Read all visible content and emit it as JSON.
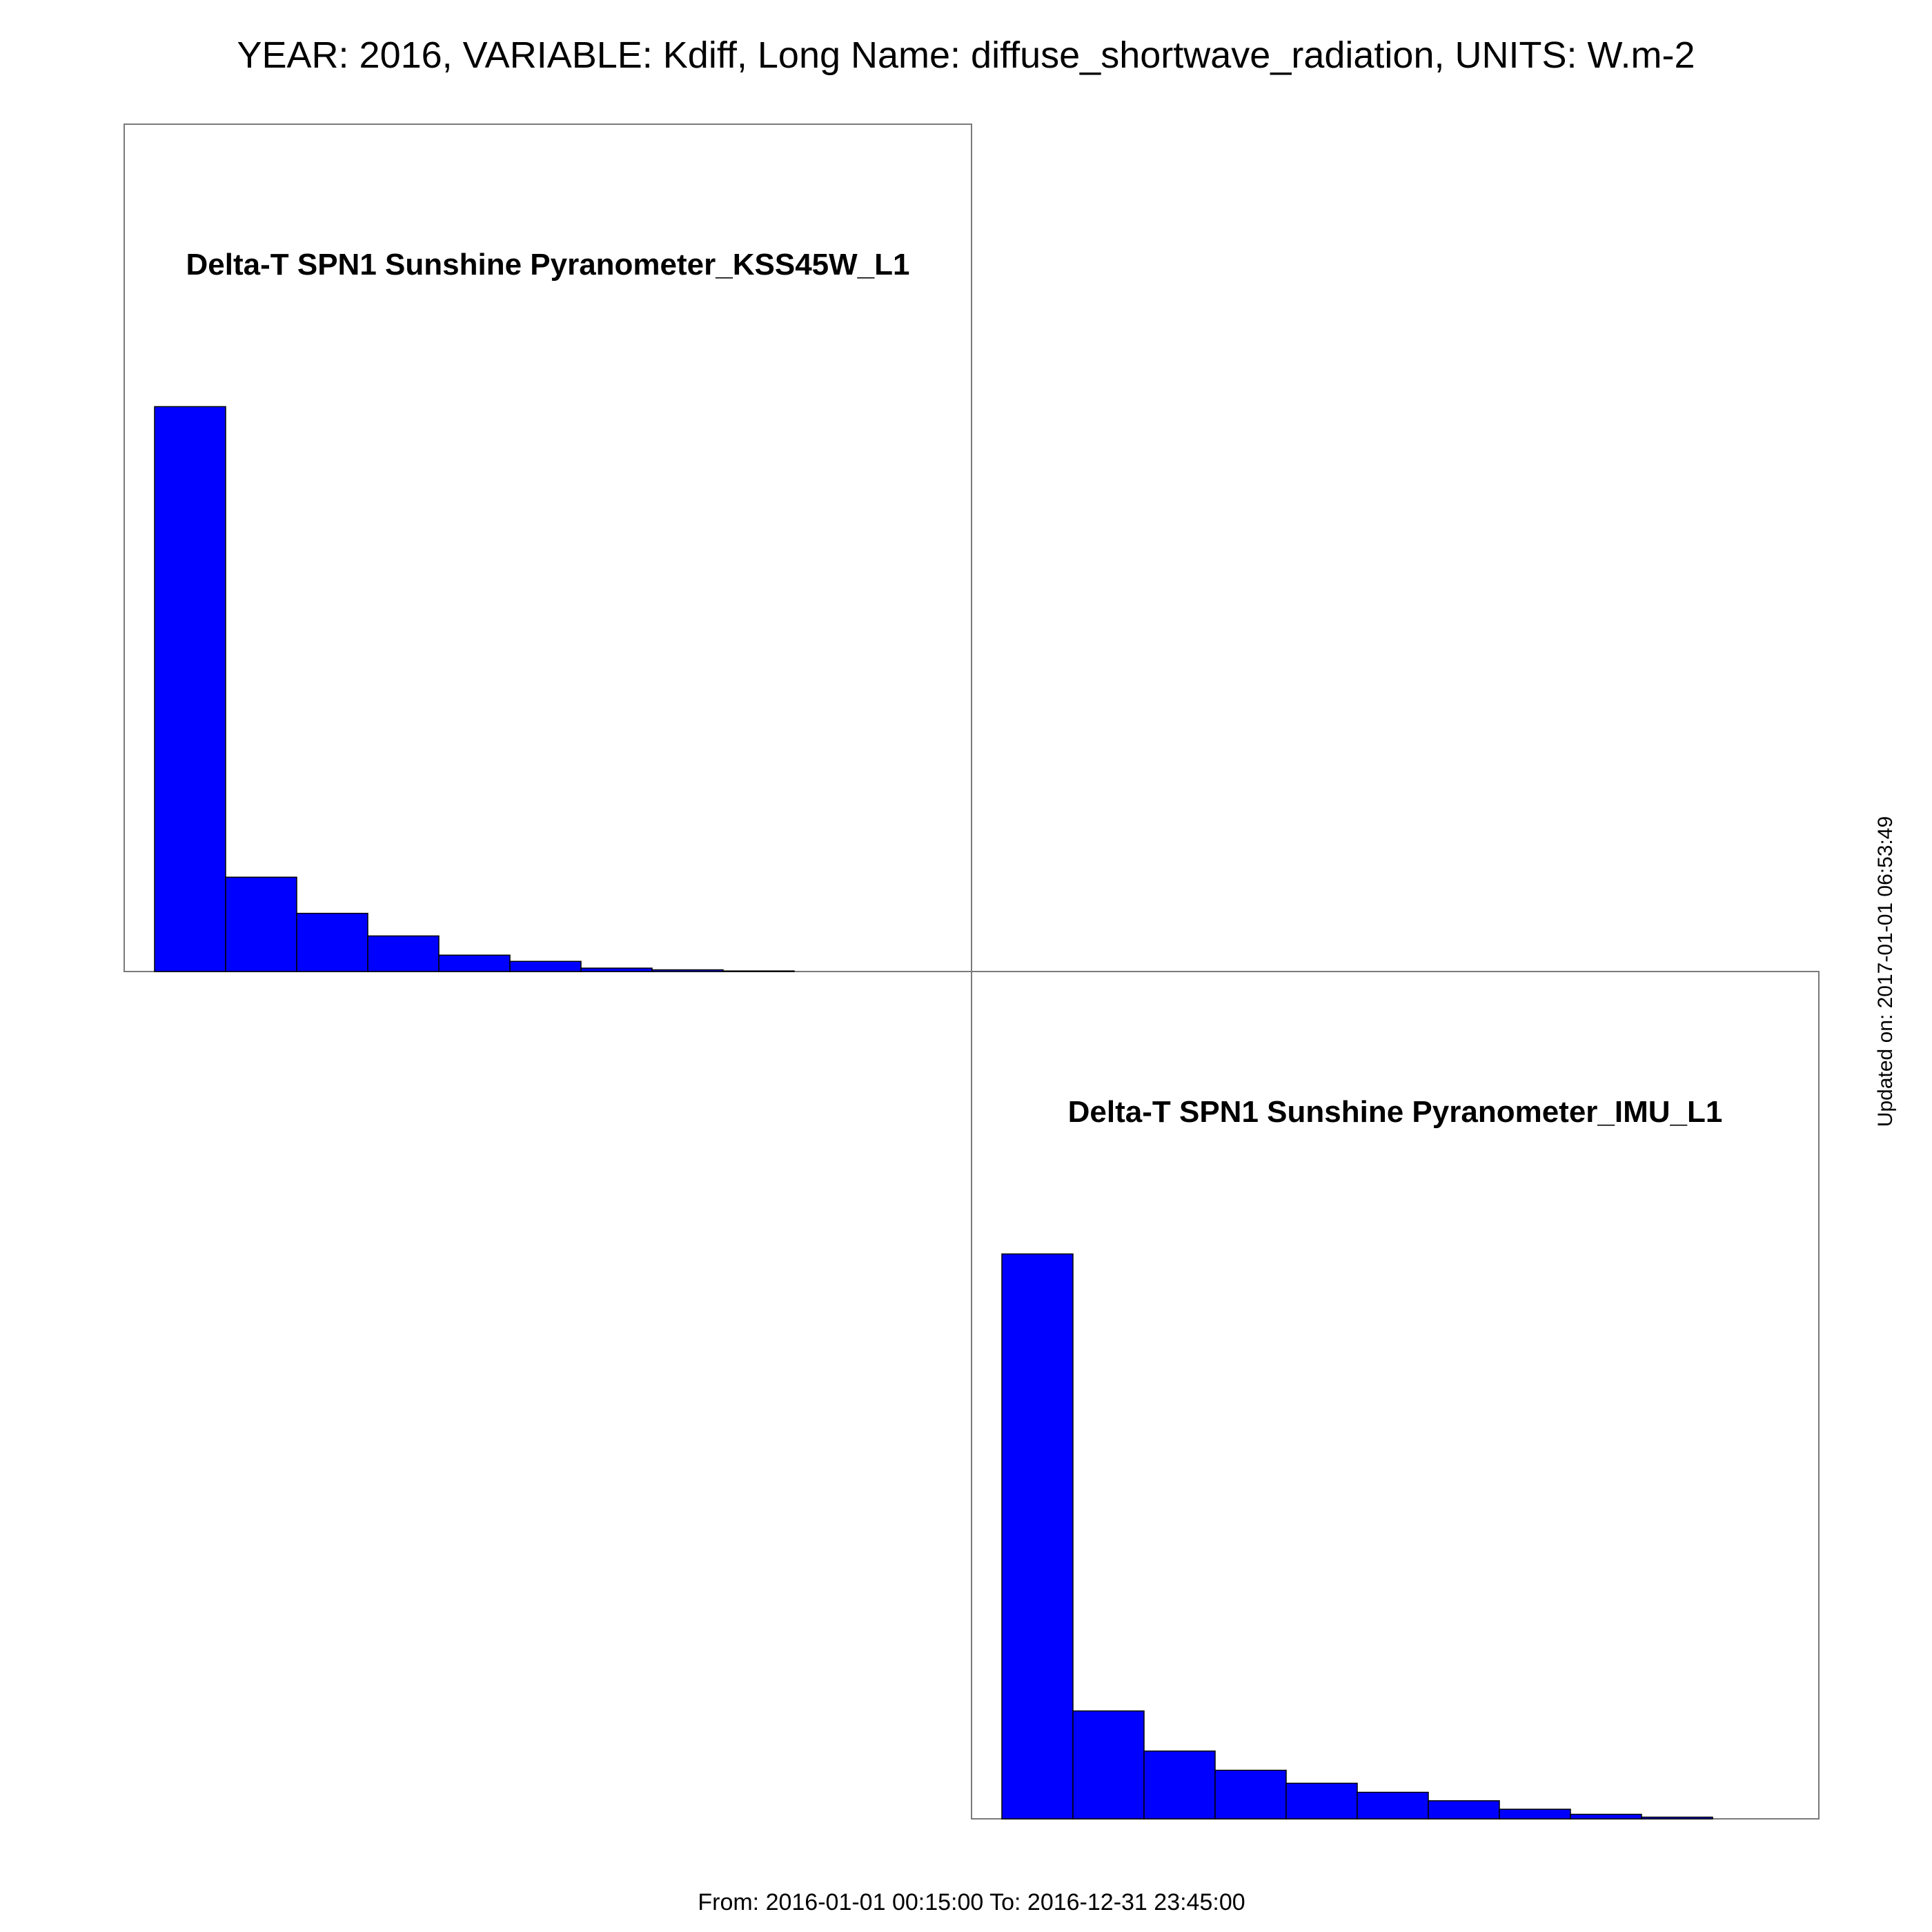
{
  "title": "YEAR: 2016, VARIABLE: Kdiff, Long Name: diffuse_shortwave_radiation, UNITS: W.m-2",
  "footer": "From: 2016-01-01 00:15:00 To: 2016-12-31 23:45:00",
  "updated": "Updated on: 2017-01-01 06:53:49",
  "colors": {
    "bar_fill": "#0000ff",
    "bar_edge": "#000000",
    "frame": "#7a7a7a"
  },
  "chart_data": [
    {
      "type": "bar",
      "title": "Delta-T SPN1 Sunshine Pyranometer_KSS45W_L1",
      "bins": [
        1,
        2,
        3,
        4,
        5,
        6,
        7,
        8,
        9
      ],
      "values": [
        100,
        16.7,
        10.3,
        6.3,
        2.9,
        1.8,
        0.6,
        0.3,
        0.1
      ],
      "ylim": [
        0,
        150
      ],
      "grid": false,
      "axes_ticks": false
    },
    {
      "type": "bar",
      "title": "Delta-T SPN1 Sunshine Pyranometer_IMU_L1",
      "bins": [
        1,
        2,
        3,
        4,
        5,
        6,
        7,
        8,
        9,
        10
      ],
      "values": [
        100,
        19.1,
        12.0,
        8.6,
        6.3,
        4.7,
        3.2,
        1.7,
        0.8,
        0.3
      ],
      "ylim": [
        0,
        150
      ],
      "grid": false,
      "axes_ticks": false
    }
  ]
}
